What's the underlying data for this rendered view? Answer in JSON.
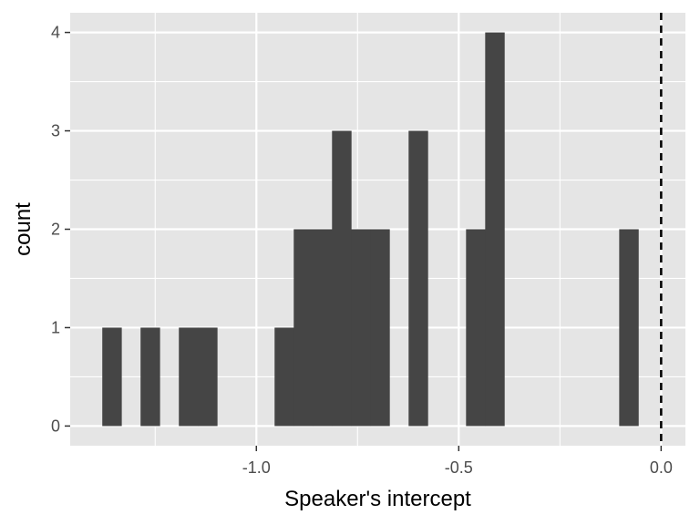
{
  "chart_data": {
    "type": "bar",
    "xlabel": "Speaker's intercept",
    "ylabel": "count",
    "xlim": [
      -1.46,
      0.06
    ],
    "ylim": [
      -0.2,
      4.2
    ],
    "x_ticks": [
      -1.0,
      -0.5,
      0.0
    ],
    "x_tick_labels": [
      "-1.0",
      "-0.5",
      "0.0"
    ],
    "y_ticks": [
      0,
      1,
      2,
      3,
      4
    ],
    "y_tick_labels": [
      "0",
      "1",
      "2",
      "3",
      "4"
    ],
    "bin_width": 0.0473,
    "bins": [
      {
        "x0": -1.3807,
        "x1": -1.3334,
        "count": 1
      },
      {
        "x0": -1.2861,
        "x1": -1.2388,
        "count": 1
      },
      {
        "x0": -1.1915,
        "x1": -1.1442,
        "count": 1
      },
      {
        "x0": -1.1442,
        "x1": -1.0969,
        "count": 1
      },
      {
        "x0": -0.955,
        "x1": -0.9077,
        "count": 1
      },
      {
        "x0": -0.9077,
        "x1": -0.8604,
        "count": 2
      },
      {
        "x0": -0.8604,
        "x1": -0.8131,
        "count": 2
      },
      {
        "x0": -0.8131,
        "x1": -0.7658,
        "count": 3
      },
      {
        "x0": -0.7658,
        "x1": -0.7185,
        "count": 2
      },
      {
        "x0": -0.7185,
        "x1": -0.6712,
        "count": 2
      },
      {
        "x0": -0.6239,
        "x1": -0.5766,
        "count": 3
      },
      {
        "x0": -0.482,
        "x1": -0.4347,
        "count": 2
      },
      {
        "x0": -0.4347,
        "x1": -0.3874,
        "count": 4
      },
      {
        "x0": -0.1036,
        "x1": -0.0563,
        "count": 2
      }
    ],
    "reference_line": {
      "x": 0.0,
      "style": "dashed",
      "color": "#000000"
    },
    "bar_color": "#454545",
    "panel_background": "#e5e5e5",
    "grid": true,
    "grid_color": "#ffffff"
  }
}
